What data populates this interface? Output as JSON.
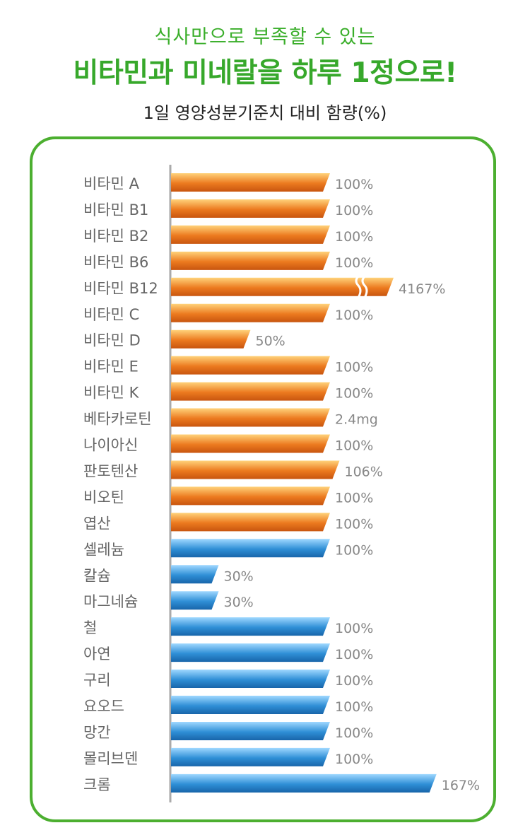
{
  "header": {
    "subtitle": "식사만으로 부족할 수 있는",
    "title": "비타민과 미네랄을 하루 1정으로!",
    "caption": "1일 영양성분기준치 대비 함량(%)"
  },
  "colors": {
    "vitamin": "#ec7a1f",
    "mineral": "#2f8fd6",
    "frame": "#4caf30",
    "axis": "#aaaaaa",
    "value_text": "#888888",
    "label_text": "#666666"
  },
  "chart_data": {
    "type": "bar",
    "orientation": "horizontal",
    "series": [
      {
        "group": "vitamin",
        "items": [
          {
            "label": "비타민 A",
            "value": 100,
            "text": "100%"
          },
          {
            "label": "비타민 B1",
            "value": 100,
            "text": "100%"
          },
          {
            "label": "비타민 B2",
            "value": 100,
            "text": "100%"
          },
          {
            "label": "비타민 B6",
            "value": 100,
            "text": "100%"
          },
          {
            "label": "비타민 B12",
            "value": 4167,
            "text": "4167%",
            "axis_break": true
          },
          {
            "label": "비타민 C",
            "value": 100,
            "text": "100%"
          },
          {
            "label": "비타민 D",
            "value": 50,
            "text": "50%"
          },
          {
            "label": "비타민 E",
            "value": 100,
            "text": "100%"
          },
          {
            "label": "비타민 K",
            "value": 100,
            "text": "100%"
          },
          {
            "label": "베타카로틴",
            "value": 100,
            "text": "2.4mg"
          },
          {
            "label": "나이아신",
            "value": 100,
            "text": "100%"
          },
          {
            "label": "판토텐산",
            "value": 106,
            "text": "106%"
          },
          {
            "label": "비오틴",
            "value": 100,
            "text": "100%"
          },
          {
            "label": "엽산",
            "value": 100,
            "text": "100%"
          }
        ]
      },
      {
        "group": "mineral",
        "items": [
          {
            "label": "셀레늄",
            "value": 100,
            "text": "100%"
          },
          {
            "label": "칼슘",
            "value": 30,
            "text": "30%"
          },
          {
            "label": "마그네슘",
            "value": 30,
            "text": "30%"
          },
          {
            "label": "철",
            "value": 100,
            "text": "100%"
          },
          {
            "label": "아연",
            "value": 100,
            "text": "100%"
          },
          {
            "label": "구리",
            "value": 100,
            "text": "100%"
          },
          {
            "label": "요오드",
            "value": 100,
            "text": "100%"
          },
          {
            "label": "망간",
            "value": 100,
            "text": "100%"
          },
          {
            "label": "몰리브덴",
            "value": 100,
            "text": "100%"
          },
          {
            "label": "크롬",
            "value": 167,
            "text": "167%"
          }
        ]
      }
    ]
  }
}
